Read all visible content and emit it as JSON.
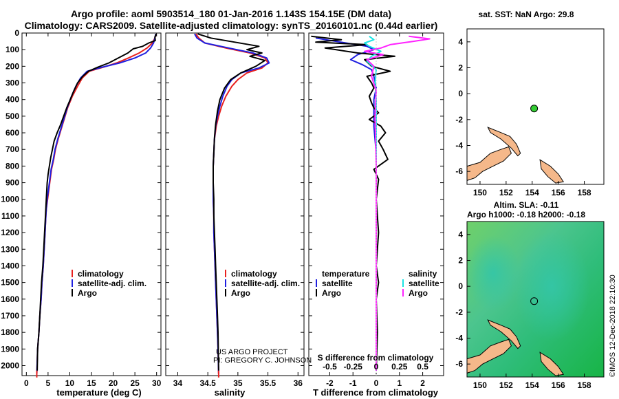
{
  "header": {
    "title_line1": "Argo profile: aoml 5903514_180 01-Jan-2016 1.143S 154.15E (DM data)",
    "title_line2": "Climatology: CARS2009. Satellite-adjusted climatology: synTS_20160101.nc (0.44d earlier)"
  },
  "credits": {
    "line1": "US ARGO PROJECT",
    "line2": "PI: GREGORY C. JOHNSON",
    "imos": "©IMOS 12-Dec-2018 22:10:30"
  },
  "colors": {
    "climatology": "#e8211f",
    "satellite": "#1f1fe0",
    "argo": "#000000",
    "sat_salinity": "#19e3e3",
    "argo_salinity": "#ff22ff",
    "land": "#f5b88a",
    "float_marker": "#33cc33"
  },
  "chart_data": [
    {
      "type": "line",
      "panel": "temperature",
      "xlabel": "temperature (deg C)",
      "xlim": [
        -1,
        31
      ],
      "ylim": [
        2060,
        0
      ],
      "xticks": [
        0,
        5,
        10,
        15,
        20,
        25,
        30
      ],
      "yticks": [
        0,
        100,
        200,
        300,
        400,
        500,
        600,
        700,
        800,
        900,
        1000,
        1100,
        1200,
        1300,
        1400,
        1500,
        1600,
        1700,
        1800,
        1900,
        2000
      ],
      "legend": [
        "climatology",
        "satellite-adj. clim.",
        "Argo"
      ],
      "series": [
        {
          "name": "climatology",
          "color_key": "climatology",
          "x": [
            29.9,
            29.6,
            29.0,
            27.8,
            26.0,
            23.5,
            20.8,
            17.8,
            14.5,
            12.9,
            11.8,
            10.6,
            9.5,
            8.7,
            8.0,
            7.3,
            6.7,
            6.3,
            5.8,
            5.5,
            5.2,
            4.9,
            4.6,
            4.5,
            4.3,
            4.1,
            3.9,
            3.6,
            3.4,
            3.1,
            2.9,
            2.6,
            2.4
          ],
          "y": [
            5,
            30,
            60,
            90,
            120,
            150,
            180,
            205,
            230,
            270,
            320,
            380,
            450,
            520,
            580,
            640,
            700,
            760,
            820,
            880,
            940,
            1000,
            1060,
            1100,
            1200,
            1300,
            1400,
            1500,
            1600,
            1700,
            1800,
            1900,
            2050
          ]
        },
        {
          "name": "satellite-adj. clim.",
          "color_key": "satellite",
          "x": [
            29.8,
            29.6,
            29.3,
            28.6,
            27.5,
            25.0,
            21.5,
            17.5,
            14.0,
            12.5,
            11.4,
            10.4,
            9.4,
            8.6,
            7.9,
            7.2,
            6.6,
            6.2,
            5.7,
            5.4,
            5.1,
            4.8,
            4.6,
            4.5,
            4.3,
            4.1,
            3.9,
            3.6,
            3.4,
            3.1,
            2.9,
            2.6,
            2.4
          ],
          "y": [
            5,
            30,
            60,
            90,
            120,
            150,
            180,
            205,
            230,
            270,
            320,
            380,
            450,
            520,
            580,
            640,
            700,
            760,
            820,
            880,
            940,
            1000,
            1060,
            1100,
            1200,
            1300,
            1400,
            1500,
            1600,
            1700,
            1800,
            1900,
            2050
          ]
        },
        {
          "name": "Argo",
          "color_key": "argo",
          "x": [
            29.9,
            29.6,
            29.7,
            28.2,
            26.8,
            24.6,
            23.4,
            21.2,
            19.0,
            16.5,
            14.3,
            13.0,
            11.8,
            10.9,
            10.1,
            9.3,
            8.6,
            7.9,
            7.1,
            6.4,
            6.0,
            5.6,
            5.3,
            5.0,
            4.8,
            4.6,
            4.4,
            4.2,
            4.0,
            3.8,
            3.5,
            3.3,
            3.1,
            2.9,
            2.6,
            2.5
          ],
          "y": [
            5,
            25,
            45,
            60,
            80,
            95,
            120,
            150,
            180,
            205,
            230,
            260,
            300,
            350,
            400,
            450,
            500,
            550,
            600,
            650,
            700,
            750,
            800,
            850,
            900,
            1000,
            1100,
            1200,
            1300,
            1400,
            1500,
            1600,
            1700,
            1800,
            1900,
            2030
          ]
        }
      ]
    },
    {
      "type": "line",
      "panel": "salinity",
      "xlabel": "salinity",
      "xlim": [
        33.8,
        36.1
      ],
      "ylim": [
        2060,
        0
      ],
      "xticks": [
        34,
        34.5,
        35,
        35.5,
        36
      ],
      "legend": [
        "climatology",
        "satellite-adj. clim.",
        "Argo"
      ],
      "series": [
        {
          "name": "climatology",
          "color_key": "climatology",
          "x": [
            34.3,
            34.35,
            34.45,
            34.8,
            35.2,
            35.45,
            35.5,
            35.4,
            35.15,
            35.0,
            34.9,
            34.8,
            34.73,
            34.68,
            34.64,
            34.61,
            34.6,
            34.59,
            34.59,
            34.59,
            34.6,
            34.6,
            34.61,
            34.62,
            34.63,
            34.64,
            34.65,
            34.66,
            34.67,
            34.68
          ],
          "y": [
            5,
            30,
            60,
            90,
            120,
            150,
            180,
            210,
            240,
            280,
            320,
            380,
            440,
            500,
            560,
            640,
            720,
            800,
            900,
            1000,
            1100,
            1200,
            1300,
            1400,
            1500,
            1600,
            1700,
            1800,
            1900,
            2050
          ]
        },
        {
          "name": "satellite-adj. clim.",
          "color_key": "satellite",
          "x": [
            34.28,
            34.32,
            34.45,
            34.85,
            35.25,
            35.48,
            35.52,
            35.35,
            35.05,
            34.9,
            34.82,
            34.75,
            34.7,
            34.66,
            34.63,
            34.61,
            34.6,
            34.59,
            34.59,
            34.59,
            34.6,
            34.6,
            34.61,
            34.62,
            34.63,
            34.64,
            34.65,
            34.66,
            34.67,
            34.68
          ],
          "y": [
            5,
            30,
            60,
            90,
            120,
            150,
            180,
            210,
            240,
            280,
            320,
            380,
            440,
            500,
            560,
            640,
            720,
            800,
            900,
            1000,
            1100,
            1200,
            1300,
            1400,
            1500,
            1600,
            1700,
            1800,
            1900,
            2050
          ]
        },
        {
          "name": "Argo",
          "color_key": "argo",
          "x": [
            34.33,
            34.55,
            34.95,
            35.35,
            35.15,
            35.4,
            35.2,
            35.45,
            35.3,
            35.05,
            34.88,
            34.78,
            34.7,
            34.66,
            34.63,
            34.61,
            34.6,
            34.59,
            34.59,
            34.6,
            34.6,
            34.61,
            34.62,
            34.63,
            34.64,
            34.65,
            34.66,
            34.67,
            34.68
          ],
          "y": [
            5,
            30,
            55,
            80,
            100,
            120,
            140,
            165,
            200,
            240,
            280,
            330,
            400,
            470,
            550,
            630,
            720,
            800,
            900,
            1000,
            1100,
            1200,
            1300,
            1400,
            1500,
            1600,
            1700,
            1800,
            2030
          ]
        }
      ]
    },
    {
      "type": "line",
      "panel": "difference",
      "xlabel": "T difference from climatology",
      "xlabel_top": "S difference from climatology",
      "xlim": [
        -2.9,
        2.9
      ],
      "ylim": [
        2060,
        0
      ],
      "xticks": [
        -2,
        -1,
        0,
        1,
        2
      ],
      "xticks_top_labels": [
        "-0.5",
        "-0.25",
        "0",
        "0.25",
        "0.5"
      ],
      "xticks_top_pos": [
        -2,
        -1,
        0,
        1,
        2
      ],
      "legend_temperature": [
        "temperature",
        "satellite",
        "Argo"
      ],
      "legend_salinity": [
        "salinity",
        "satellite",
        "Argo"
      ],
      "series": [
        {
          "name": "temperature satellite",
          "color_key": "satellite",
          "x": [
            -2.6,
            -1.3,
            -0.4,
            -0.1,
            -0.8,
            -1.1,
            -0.6,
            -0.2,
            -0.1,
            0,
            -0.1,
            -0.1,
            -0.1,
            -0.05,
            0,
            0,
            0,
            0,
            0,
            0,
            0,
            0,
            0,
            0
          ],
          "y": [
            30,
            60,
            80,
            100,
            130,
            160,
            190,
            220,
            260,
            330,
            400,
            480,
            560,
            640,
            720,
            800,
            900,
            1000,
            1200,
            1400,
            1600,
            1800,
            1900,
            2030
          ]
        },
        {
          "name": "temperature Argo",
          "color_key": "argo",
          "x": [
            -2.8,
            -1.5,
            -2.6,
            -0.4,
            -2.2,
            -0.8,
            0.8,
            -0.5,
            -0.2,
            0.6,
            -0.4,
            -0.2,
            -0.1,
            -0.3,
            -0.2,
            -0.1,
            0.1,
            -0.3,
            0.2,
            0.4,
            0.1,
            0.3,
            0.5,
            -0.1,
            0.1,
            0.0,
            0.1,
            0.0,
            0.1,
            0.0,
            0.05,
            0.0
          ],
          "y": [
            20,
            40,
            55,
            70,
            90,
            120,
            140,
            160,
            200,
            230,
            260,
            300,
            330,
            380,
            420,
            450,
            480,
            520,
            560,
            600,
            650,
            700,
            760,
            820,
            880,
            1000,
            1200,
            1400,
            1500,
            1600,
            1800,
            2030
          ]
        },
        {
          "name": "salinity satellite",
          "color_key": "sat_salinity",
          "x": [
            -0.3,
            -0.1,
            -0.5,
            -0.3,
            0.2,
            -0.2,
            -0.4,
            0.0,
            -0.05,
            0.0,
            0.0,
            0.0,
            0.0,
            0.0
          ],
          "y": [
            20,
            40,
            60,
            80,
            110,
            140,
            170,
            220,
            300,
            400,
            600,
            1000,
            1500,
            2030
          ]
        },
        {
          "name": "salinity Argo",
          "color_key": "argo_salinity",
          "x": [
            1.4,
            2.3,
            1.6,
            0.6,
            0.2,
            -0.5,
            0.3,
            -0.4,
            -0.1,
            -0.2,
            0.0,
            -0.05,
            0.0,
            0.0,
            0.0
          ],
          "y": [
            20,
            35,
            50,
            70,
            90,
            110,
            130,
            160,
            200,
            260,
            350,
            500,
            800,
            1200,
            2030
          ]
        }
      ]
    },
    {
      "type": "scatter",
      "panel": "sst-map",
      "title": "sat. SST: NaN Argo: 29.8",
      "xlim": [
        149,
        159.5
      ],
      "ylim": [
        -7,
        5
      ],
      "xticks": [
        150,
        152,
        154,
        156,
        158
      ],
      "yticks": [
        4,
        2,
        0,
        -2,
        -4,
        -6
      ],
      "float_position": {
        "lon": 154.15,
        "lat": -1.143
      }
    },
    {
      "type": "heatmap",
      "panel": "sla-map",
      "title_line1": "Altim. SLA: -0.11",
      "title_line2": "Argo h1000: -0.18 h2000: -0.18",
      "xlim": [
        149,
        159.5
      ],
      "ylim": [
        -7,
        5
      ],
      "xticks": [
        150,
        152,
        154,
        156,
        158
      ],
      "yticks": [
        4,
        2,
        0,
        -2,
        -4,
        -6
      ],
      "float_position": {
        "lon": 154.15,
        "lat": -1.143
      }
    }
  ]
}
